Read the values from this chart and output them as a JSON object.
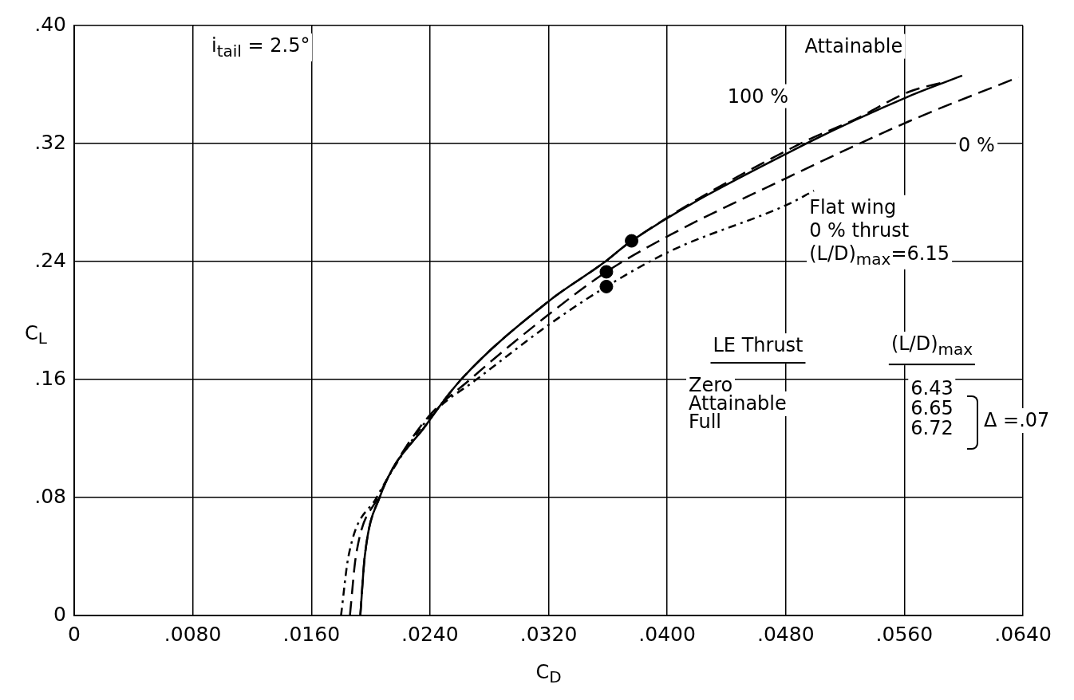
{
  "chart_data": {
    "type": "line",
    "xlabel": "C$_{D}$",
    "ylabel": "C$_{L}$",
    "xlim": [
      0,
      0.064
    ],
    "ylim": [
      0,
      0.4
    ],
    "xticks": [
      0,
      {
        "value": 0.008,
        "label": ".0080"
      },
      {
        "value": 0.016,
        "label": ".0160"
      },
      {
        "value": 0.024,
        "label": ".0240"
      },
      {
        "value": 0.032,
        "label": ".0320"
      },
      {
        "value": 0.04,
        "label": ".0400"
      },
      {
        "value": 0.048,
        "label": ".0480"
      },
      {
        "value": 0.056,
        "label": ".0560"
      },
      {
        "value": 0.064,
        "label": ".0640"
      }
    ],
    "yticks": [
      0,
      {
        "value": 0.08,
        "label": ".08"
      },
      {
        "value": 0.16,
        "label": ".16"
      },
      {
        "value": 0.24,
        "label": ".24"
      },
      {
        "value": 0.32,
        "label": ".32"
      },
      {
        "value": 0.4,
        "label": ".40"
      }
    ],
    "grid": true,
    "series": [
      {
        "name": "100 %",
        "color": "#000000",
        "line_style": "dashed",
        "marker": "none",
        "x": [
          0.0193,
          0.0196,
          0.0206,
          0.0238,
          0.0261,
          0.032,
          0.0357,
          0.0376,
          0.0488,
          0.0528,
          0.0563,
          0.0588
        ],
        "values": [
          0,
          0.04,
          0.08,
          0.13,
          0.16,
          0.213,
          0.239,
          0.254,
          0.319,
          0.337,
          0.355,
          0.362
        ]
      },
      {
        "name": "Attainable",
        "color": "#000000",
        "line_style": "solid",
        "marker": "none",
        "x": [
          0.0193,
          0.0196,
          0.0206,
          0.0238,
          0.0261,
          0.032,
          0.0357,
          0.0376,
          0.0488,
          0.0563,
          0.0599
        ],
        "values": [
          0,
          0.04,
          0.08,
          0.13,
          0.16,
          0.213,
          0.239,
          0.254,
          0.317,
          0.352,
          0.366
        ]
      },
      {
        "name": "0 %",
        "color": "#000000",
        "line_style": "dashed",
        "marker": "none",
        "x": [
          0.0186,
          0.019,
          0.0205,
          0.0235,
          0.0267,
          0.032,
          0.0359,
          0.0402,
          0.0473,
          0.0563,
          0.0637
        ],
        "values": [
          0,
          0.04,
          0.08,
          0.13,
          0.16,
          0.204,
          0.233,
          0.258,
          0.293,
          0.335,
          0.365
        ]
      },
      {
        "name": "Flat wing\n0 % thrust\n(L/D)$_{max}$=6.15",
        "color": "#000000",
        "line_style": "dotted",
        "marker": "none",
        "x": [
          0.018,
          0.0185,
          0.0204,
          0.0236,
          0.0247,
          0.027,
          0.032,
          0.0359,
          0.0402,
          0.0482,
          0.0499
        ],
        "values": [
          0,
          0.04,
          0.08,
          0.13,
          0.142,
          0.159,
          0.197,
          0.223,
          0.247,
          0.279,
          0.288
        ]
      },
      {
        "type": "scatter",
        "color": "#000000",
        "marker": "circle",
        "x": [
          0.0376,
          0.0359,
          0.0359
        ],
        "values": [
          0.254,
          0.233,
          0.223
        ]
      }
    ],
    "annotations": [
      "i$_{tail}$ = 2.5°",
      "LE Thrust",
      "(L/D)$_{max}$",
      "Zero",
      "6.43",
      "Attainable",
      "6.65",
      "Full",
      "6.72",
      "Δ =.07"
    ]
  }
}
